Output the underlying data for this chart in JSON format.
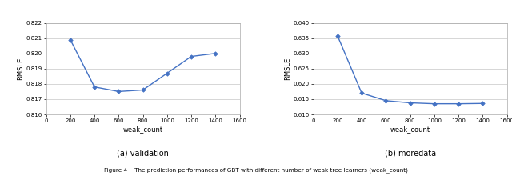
{
  "left": {
    "x": [
      200,
      400,
      600,
      800,
      1000,
      1200,
      1400
    ],
    "y": [
      0.8209,
      0.8178,
      0.8175,
      0.8176,
      0.8187,
      0.8198,
      0.82
    ],
    "xlim": [
      0,
      1600
    ],
    "ylim": [
      0.816,
      0.822
    ],
    "yticks": [
      0.816,
      0.817,
      0.818,
      0.819,
      0.82,
      0.821,
      0.822
    ],
    "xticks": [
      0,
      200,
      400,
      600,
      800,
      1000,
      1200,
      1400,
      1600
    ],
    "xlabel": "weak_count",
    "ylabel": "RMSLE",
    "subtitle": "(a) validation"
  },
  "right": {
    "x": [
      200,
      400,
      600,
      800,
      1000,
      1200,
      1400
    ],
    "y": [
      0.6358,
      0.617,
      0.6145,
      0.6138,
      0.6135,
      0.6135,
      0.6136
    ],
    "xlim": [
      0,
      1600
    ],
    "ylim": [
      0.61,
      0.64
    ],
    "yticks": [
      0.61,
      0.615,
      0.62,
      0.625,
      0.63,
      0.635,
      0.64
    ],
    "xticks": [
      0,
      200,
      400,
      600,
      800,
      1000,
      1200,
      1400,
      1600
    ],
    "xlabel": "weak_count",
    "ylabel": "RMSLE",
    "subtitle": "(b) moredata"
  },
  "line_color": "#4472C4",
  "marker": "D",
  "markersize": 2.8,
  "linewidth": 1.0,
  "caption": "Figure 4    The prediction performances of GBT with different number of weak tree learners (weak_count)",
  "grid_color": "#d0d0d0",
  "bg_color": "#ffffff"
}
